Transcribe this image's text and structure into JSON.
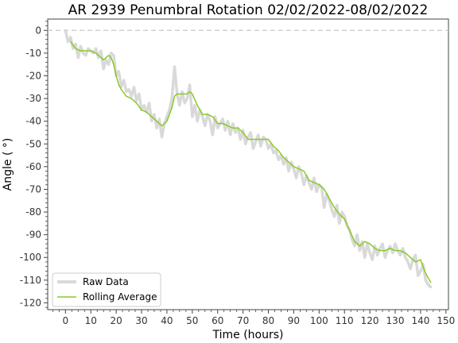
{
  "chart_data": {
    "type": "line",
    "title": "AR 2939 Penumbral Rotation 02/02/2022-08/02/2022",
    "xlabel": "Time (hours)",
    "ylabel": "Angle ( °)",
    "xlim": [
      -7,
      151
    ],
    "ylim": [
      -123,
      5
    ],
    "x_ticks": [
      0,
      10,
      20,
      30,
      40,
      50,
      60,
      70,
      80,
      90,
      100,
      110,
      120,
      130,
      140,
      150
    ],
    "y_ticks": [
      0,
      -10,
      -20,
      -30,
      -40,
      -50,
      -60,
      -70,
      -80,
      -90,
      -100,
      -110,
      -120
    ],
    "reference_line": {
      "y": 0,
      "style": "dashed",
      "color": "#cccccc"
    },
    "legend_position": "lower-left",
    "series": [
      {
        "name": "Raw Data",
        "color": "#d9d9d9",
        "x": [
          0,
          1,
          2,
          3,
          4,
          5,
          6,
          7,
          8,
          9,
          10,
          11,
          12,
          13,
          14,
          15,
          16,
          17,
          18,
          19,
          20,
          21,
          22,
          23,
          24,
          25,
          26,
          27,
          28,
          29,
          30,
          31,
          32,
          33,
          34,
          35,
          36,
          37,
          38,
          39,
          40,
          41,
          42,
          43,
          44,
          45,
          46,
          47,
          48,
          49,
          50,
          51,
          52,
          53,
          54,
          55,
          56,
          57,
          58,
          59,
          60,
          61,
          62,
          63,
          64,
          65,
          66,
          67,
          68,
          69,
          70,
          71,
          72,
          73,
          74,
          75,
          76,
          77,
          78,
          79,
          80,
          81,
          82,
          83,
          84,
          85,
          86,
          87,
          88,
          89,
          90,
          91,
          92,
          93,
          94,
          95,
          96,
          97,
          98,
          99,
          100,
          101,
          102,
          103,
          104,
          105,
          106,
          107,
          108,
          109,
          110,
          111,
          112,
          113,
          114,
          115,
          116,
          117,
          118,
          119,
          120,
          121,
          122,
          123,
          124,
          125,
          126,
          127,
          128,
          129,
          130,
          131,
          132,
          133,
          134,
          135,
          136,
          137,
          138,
          139,
          140,
          141,
          142,
          143,
          144
        ],
        "y": [
          0,
          -5,
          -3,
          -8,
          -6,
          -12,
          -7,
          -10,
          -11,
          -8,
          -9,
          -10,
          -8,
          -12,
          -9,
          -17,
          -13,
          -15,
          -10,
          -11,
          -20,
          -18,
          -25,
          -22,
          -27,
          -26,
          -29,
          -25,
          -31,
          -28,
          -35,
          -33,
          -36,
          -32,
          -40,
          -37,
          -43,
          -39,
          -47,
          -41,
          -38,
          -35,
          -30,
          -16,
          -28,
          -33,
          -27,
          -32,
          -30,
          -24,
          -38,
          -33,
          -40,
          -35,
          -38,
          -42,
          -37,
          -40,
          -46,
          -38,
          -43,
          -41,
          -39,
          -44,
          -40,
          -46,
          -41,
          -45,
          -43,
          -48,
          -44,
          -50,
          -47,
          -45,
          -52,
          -49,
          -46,
          -51,
          -47,
          -48,
          -52,
          -50,
          -54,
          -53,
          -57,
          -55,
          -59,
          -56,
          -62,
          -58,
          -61,
          -65,
          -60,
          -63,
          -68,
          -64,
          -67,
          -70,
          -65,
          -71,
          -68,
          -69,
          -78,
          -72,
          -75,
          -79,
          -82,
          -77,
          -85,
          -80,
          -82,
          -86,
          -88,
          -92,
          -95,
          -90,
          -97,
          -93,
          -100,
          -94,
          -98,
          -101,
          -95,
          -99,
          -96,
          -94,
          -100,
          -97,
          -95,
          -98,
          -94,
          -97,
          -99,
          -96,
          -100,
          -102,
          -105,
          -101,
          -99,
          -108,
          -106,
          -103,
          -110,
          -112,
          -113
        ]
      },
      {
        "name": "Rolling Average",
        "color": "#8ac926",
        "x": [
          2,
          4,
          6,
          8,
          10,
          12,
          14,
          15,
          16,
          17,
          18,
          19,
          20,
          21,
          22,
          24,
          26,
          28,
          30,
          32,
          34,
          36,
          37,
          38,
          40,
          42,
          43,
          44,
          46,
          48,
          49,
          50,
          52,
          54,
          56,
          58,
          60,
          62,
          64,
          66,
          68,
          70,
          72,
          74,
          76,
          78,
          80,
          82,
          84,
          86,
          88,
          90,
          92,
          94,
          96,
          98,
          100,
          102,
          104,
          106,
          108,
          110,
          112,
          114,
          116,
          118,
          120,
          122,
          124,
          126,
          128,
          130,
          132,
          134,
          136,
          138,
          140,
          142,
          144
        ],
        "y": [
          -5,
          -8,
          -9,
          -9,
          -9,
          -10,
          -12,
          -13,
          -12,
          -11,
          -12,
          -15,
          -20,
          -24,
          -26,
          -29,
          -30,
          -32,
          -35,
          -36,
          -38,
          -40,
          -41,
          -42,
          -40,
          -34,
          -29,
          -28,
          -28,
          -28,
          -27,
          -28,
          -33,
          -37,
          -37,
          -38,
          -41,
          -41,
          -42,
          -43,
          -43,
          -45,
          -48,
          -48,
          -48,
          -48,
          -48,
          -51,
          -53,
          -56,
          -58,
          -60,
          -61,
          -62,
          -66,
          -67,
          -68,
          -70,
          -74,
          -78,
          -81,
          -83,
          -88,
          -93,
          -95,
          -93,
          -94,
          -96,
          -97,
          -97,
          -96,
          -97,
          -97,
          -98,
          -100,
          -102,
          -101,
          -107,
          -111
        ]
      }
    ]
  }
}
